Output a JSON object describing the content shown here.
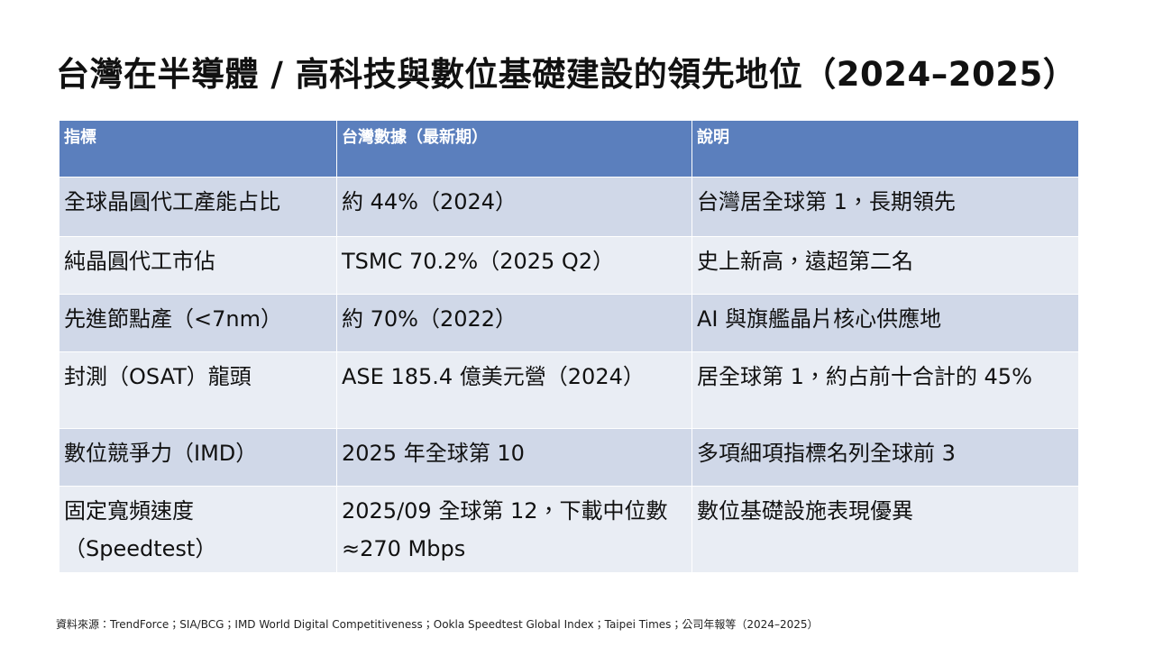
{
  "header": {
    "title": "台灣在半導體 / 高科技與數位基礎建設的領先地位（2024–2025）"
  },
  "table": {
    "columns": [
      "指標",
      "台灣數據（最新期）",
      "說明"
    ],
    "rows": [
      [
        "全球晶圓代工產能占比",
        "約 44%（2024）",
        "台灣居全球第 1，長期領先"
      ],
      [
        "純晶圓代工市佔",
        "TSMC 70.2%（2025 Q2）",
        "史上新高，遠超第二名"
      ],
      [
        "先進節點產（<7nm）",
        "約 70%（2022）",
        "AI 與旗艦晶片核心供應地"
      ],
      [
        "封測（OSAT）龍頭",
        "ASE 185.4 億美元營（2024）",
        "居全球第 1，約占前十合計的 45%"
      ],
      [
        "數位競爭力（IMD）",
        "2025 年全球第 10",
        "多項細項指標名列全球前 3"
      ],
      [
        "固定寬頻速度（Speedtest）",
        "2025/09 全球第 12，下載中位數 ≈270 Mbps",
        "數位基礎設施表現優異"
      ]
    ]
  },
  "footer": {
    "source": "資料來源：TrendForce；SIA/BCG；IMD World Digital Competitiveness；Ookla Speedtest Global Index；Taipei Times；公司年報等（2024–2025）"
  }
}
